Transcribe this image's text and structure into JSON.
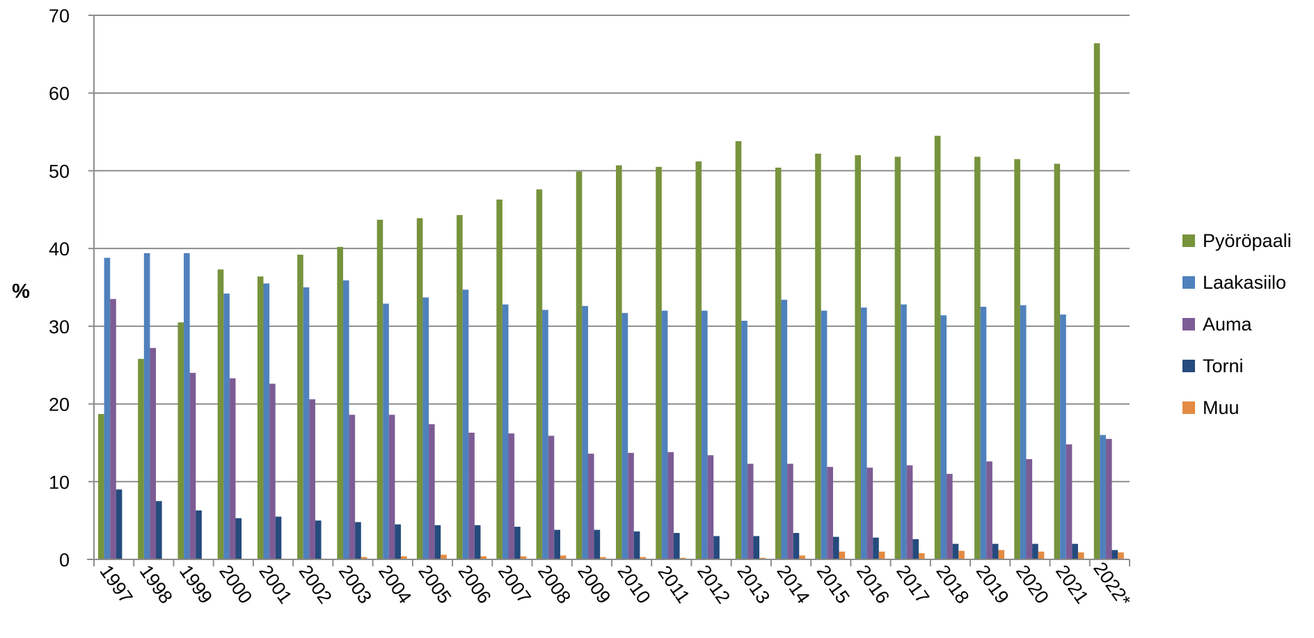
{
  "chart_data": {
    "type": "bar",
    "title": "",
    "xlabel": "",
    "ylabel": "%",
    "ylim": [
      0,
      70
    ],
    "yticks": [
      0,
      10,
      20,
      30,
      40,
      50,
      60,
      70
    ],
    "grid": true,
    "legend_position": "right",
    "categories": [
      "1997",
      "1998",
      "1999",
      "2000",
      "2001",
      "2002",
      "2003",
      "2004",
      "2005",
      "2006",
      "2007",
      "2008",
      "2009",
      "2010",
      "2011",
      "2012",
      "2013",
      "2014",
      "2015",
      "2016",
      "2017",
      "2018",
      "2019",
      "2020",
      "2021",
      "2022*"
    ],
    "series": [
      {
        "name": "Pyöröpaali",
        "color": "#77933C",
        "values": [
          18.7,
          25.8,
          30.5,
          37.3,
          36.4,
          39.2,
          40.2,
          43.7,
          43.9,
          44.3,
          46.3,
          47.6,
          49.9,
          50.7,
          50.5,
          51.2,
          53.8,
          50.4,
          52.2,
          52.0,
          51.8,
          54.5,
          51.8,
          51.5,
          50.9,
          66.4
        ]
      },
      {
        "name": "Laakasiilo",
        "color": "#4F81BD",
        "values": [
          38.8,
          39.4,
          39.4,
          34.2,
          35.5,
          35.0,
          35.9,
          32.9,
          33.7,
          34.7,
          32.8,
          32.1,
          32.6,
          31.7,
          32.0,
          32.0,
          30.7,
          33.4,
          32.0,
          32.4,
          32.8,
          31.4,
          32.5,
          32.7,
          31.5,
          16.0
        ]
      },
      {
        "name": "Auma",
        "color": "#7D5C95",
        "values": [
          33.5,
          27.2,
          24.0,
          23.3,
          22.6,
          20.6,
          18.6,
          18.6,
          17.4,
          16.3,
          16.2,
          15.9,
          13.6,
          13.7,
          13.8,
          13.4,
          12.3,
          12.3,
          11.9,
          11.8,
          12.1,
          11.0,
          12.6,
          12.9,
          14.8,
          15.5
        ]
      },
      {
        "name": "Torni",
        "color": "#254A7D",
        "values": [
          9.0,
          7.5,
          6.3,
          5.3,
          5.5,
          5.0,
          4.8,
          4.5,
          4.4,
          4.4,
          4.2,
          3.8,
          3.8,
          3.6,
          3.4,
          3.0,
          3.0,
          3.4,
          2.9,
          2.8,
          2.6,
          2.0,
          2.0,
          2.0,
          2.0,
          1.2
        ]
      },
      {
        "name": "Muu",
        "color": "#E38B42",
        "values": [
          0,
          0,
          0,
          0,
          0,
          0.1,
          0.3,
          0.4,
          0.6,
          0.4,
          0.4,
          0.5,
          0.3,
          0.3,
          0.2,
          0.1,
          0.2,
          0.5,
          1.0,
          1.0,
          0.8,
          1.1,
          1.2,
          1.0,
          0.9,
          0.9
        ]
      }
    ]
  }
}
